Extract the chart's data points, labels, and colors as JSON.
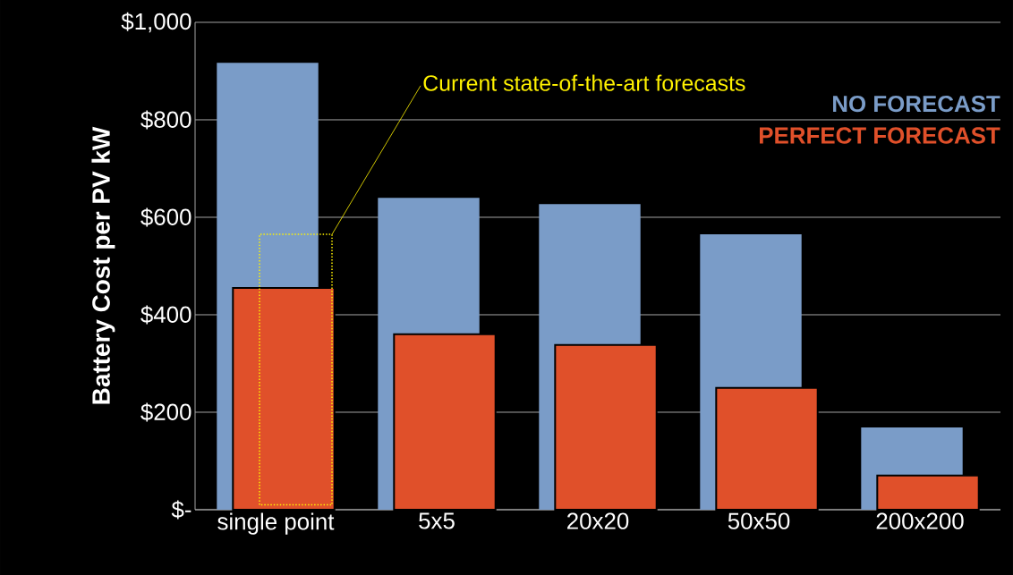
{
  "chart_data": {
    "type": "bar",
    "ylabel": "Battery Cost per PV kW",
    "categories": [
      "single point",
      "5x5",
      "20x20",
      "50x50",
      "200x200"
    ],
    "series": [
      {
        "name": "NO FORECAST",
        "color": "#7a9cc8",
        "values": [
          917,
          640,
          627,
          565,
          169
        ]
      },
      {
        "name": "PERFECT FORECAST",
        "color": "#e0502a",
        "values": [
          455,
          360,
          338,
          250,
          70
        ]
      }
    ],
    "ylim": [
      0,
      1000
    ],
    "yticks": [
      {
        "value": 0,
        "label": "$-"
      },
      {
        "value": 200,
        "label": "$200"
      },
      {
        "value": 400,
        "label": "$400"
      },
      {
        "value": 600,
        "label": "$600"
      },
      {
        "value": 800,
        "label": "$800"
      },
      {
        "value": 1000,
        "label": "$1,000"
      }
    ],
    "grid": "y",
    "legend": "top right",
    "annotations": [
      "Current state-of-the-art forecasts"
    ]
  }
}
